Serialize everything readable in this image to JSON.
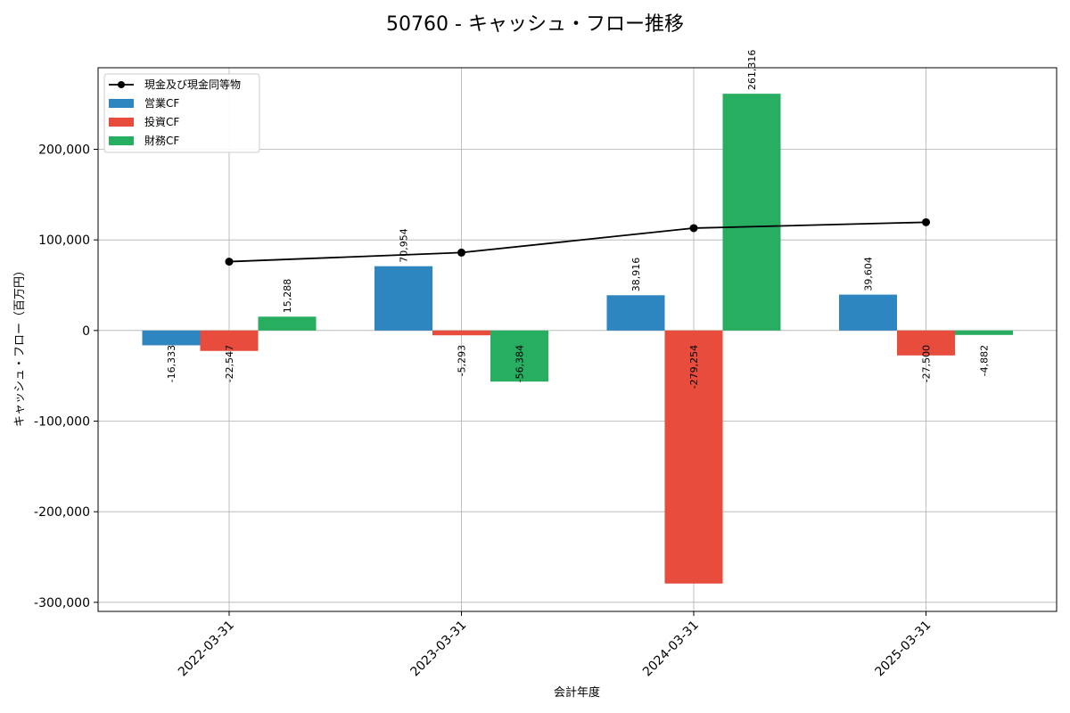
{
  "chart_data": {
    "type": "bar",
    "title": "50760 - キャッシュ・フロー推移",
    "xlabel": "会計年度",
    "ylabel": "キャッシュ・フロー（百万円）",
    "ylim": [
      -310000,
      290000
    ],
    "yticks": [
      -300000,
      -200000,
      -100000,
      0,
      100000,
      200000
    ],
    "ytick_labels": [
      "-300,000",
      "-200,000",
      "-100,000",
      "0",
      "100,000",
      "200,000"
    ],
    "categories": [
      "2022-03-31",
      "2023-03-31",
      "2024-03-31",
      "2025-03-31"
    ],
    "grid": true,
    "legend_position": "top-left",
    "series": [
      {
        "name": "営業CF",
        "kind": "bar",
        "color": "#2e86c1",
        "values": [
          -16333,
          70954,
          38916,
          39604
        ],
        "labels": [
          "-16,333",
          "70,954",
          "38,916",
          "39,604"
        ]
      },
      {
        "name": "投資CF",
        "kind": "bar",
        "color": "#e74c3c",
        "values": [
          -22547,
          -5293,
          -279254,
          -27500
        ],
        "labels": [
          "-22,547",
          "-5,293",
          "-279,254",
          "-27,500"
        ]
      },
      {
        "name": "財務CF",
        "kind": "bar",
        "color": "#27ae60",
        "values": [
          15288,
          -56384,
          261316,
          -4882
        ],
        "labels": [
          "15,288",
          "-56,384",
          "261,316",
          "-4,882"
        ]
      },
      {
        "name": "現金及び現金同等物",
        "kind": "line",
        "color": "#000000",
        "values": [
          76000,
          86000,
          113000,
          119500
        ]
      }
    ]
  }
}
